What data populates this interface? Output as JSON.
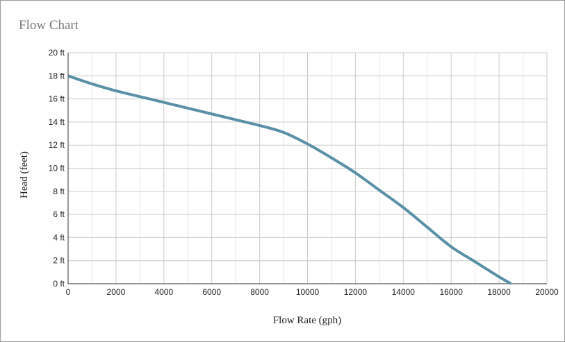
{
  "chart_data": {
    "type": "line",
    "title": "Flow Chart",
    "xlabel": "Flow Rate (gph)",
    "ylabel": "Head (feet)",
    "xlim": [
      0,
      20000
    ],
    "ylim": [
      0,
      20
    ],
    "x_ticks": [
      "0",
      "2000",
      "4000",
      "6000",
      "8000",
      "10000",
      "12000",
      "14000",
      "16000",
      "18000",
      "20000"
    ],
    "y_ticks": [
      "0 ft",
      "2 ft",
      "4 ft",
      "6 ft",
      "8 ft",
      "10 ft",
      "12 ft",
      "14 ft",
      "16 ft",
      "18 ft",
      "20 ft"
    ],
    "grid": true,
    "color": "#5a8fa8",
    "series": [
      {
        "x": [
          0,
          1000,
          2000,
          3000,
          4000,
          5000,
          6000,
          7000,
          8000,
          9000,
          10000,
          11000,
          12000,
          13000,
          14000,
          15000,
          16000,
          17000,
          18000,
          18500
        ],
        "y": [
          18,
          17.3,
          16.7,
          16.2,
          15.7,
          15.2,
          14.7,
          14.2,
          13.7,
          13.1,
          12.1,
          10.9,
          9.6,
          8.1,
          6.6,
          4.9,
          3.2,
          1.9,
          0.6,
          0
        ]
      }
    ]
  }
}
